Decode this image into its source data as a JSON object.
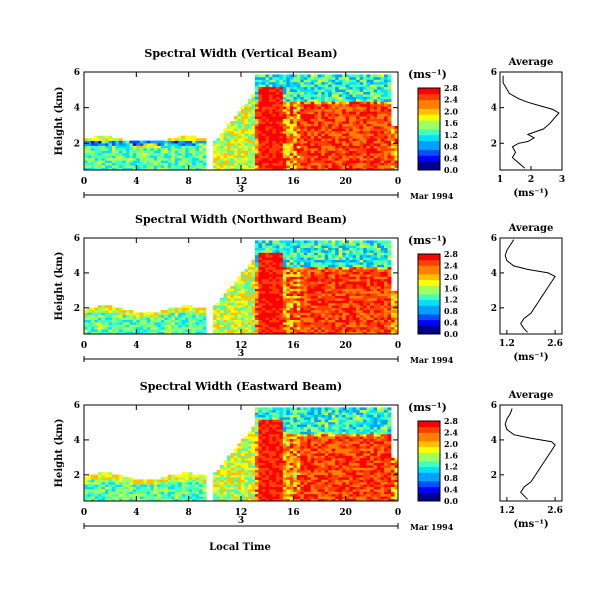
{
  "chart_data": [
    {
      "type": "heatmap",
      "title": "Spectral Width (Vertical Beam)",
      "ylabel": "Height (km)",
      "x_ticks": [
        "0",
        "4",
        "8",
        "12",
        "16",
        "20",
        "0"
      ],
      "y_ticks": [
        "2",
        "4",
        "6"
      ],
      "xlim": [
        0,
        24
      ],
      "ylim": [
        0.5,
        6
      ],
      "day_label": "3",
      "date_label": "Mar 1994",
      "colorbar": {
        "unit": "(ms⁻¹)",
        "labels": [
          "0.0",
          "0.4",
          "0.8",
          "1.2",
          "1.6",
          "2.0",
          "2.4",
          "2.8"
        ]
      },
      "average": {
        "title": "Average",
        "xlabel": "(ms⁻¹)",
        "x_ticks": [
          "1",
          "2",
          "3"
        ],
        "xlim": [
          1,
          3
        ],
        "y_ticks": [
          "2",
          "4",
          "6"
        ],
        "ylim": [
          0.5,
          6
        ],
        "profile": [
          [
            1.8,
            0.6
          ],
          [
            1.6,
            0.9
          ],
          [
            1.4,
            1.2
          ],
          [
            1.5,
            1.5
          ],
          [
            1.4,
            1.8
          ],
          [
            1.6,
            2.0
          ],
          [
            1.9,
            2.1
          ],
          [
            2.1,
            2.3
          ],
          [
            1.9,
            2.5
          ],
          [
            2.4,
            2.8
          ],
          [
            2.6,
            3.1
          ],
          [
            2.7,
            3.3
          ],
          [
            2.8,
            3.5
          ],
          [
            2.9,
            3.7
          ],
          [
            2.7,
            3.9
          ],
          [
            2.3,
            4.1
          ],
          [
            1.9,
            4.3
          ],
          [
            1.6,
            4.5
          ],
          [
            1.3,
            4.8
          ],
          [
            1.2,
            5.1
          ],
          [
            1.1,
            5.4
          ],
          [
            1.1,
            5.8
          ]
        ]
      }
    },
    {
      "type": "heatmap",
      "title": "Spectral Width (Northward Beam)",
      "ylabel": "Height (km)",
      "x_ticks": [
        "0",
        "4",
        "8",
        "12",
        "16",
        "20",
        "0"
      ],
      "y_ticks": [
        "2",
        "4",
        "6"
      ],
      "xlim": [
        0,
        24
      ],
      "ylim": [
        0.5,
        6
      ],
      "day_label": "3",
      "date_label": "Mar 1994",
      "colorbar": {
        "unit": "(ms⁻¹)",
        "labels": [
          "0.0",
          "0.4",
          "0.8",
          "1.2",
          "1.6",
          "2.0",
          "2.4",
          "2.8"
        ]
      },
      "average": {
        "title": "Average",
        "xlabel": "(ms⁻¹)",
        "x_ticks": [
          "1.2",
          "2.6"
        ],
        "xlim": [
          1.0,
          2.8
        ],
        "y_ticks": [
          "2",
          "4",
          "6"
        ],
        "ylim": [
          0.5,
          6
        ],
        "profile": [
          [
            1.8,
            0.6
          ],
          [
            1.7,
            0.8
          ],
          [
            1.6,
            1.1
          ],
          [
            1.7,
            1.4
          ],
          [
            1.9,
            1.7
          ],
          [
            2.0,
            2.0
          ],
          [
            2.1,
            2.3
          ],
          [
            2.2,
            2.6
          ],
          [
            2.3,
            2.9
          ],
          [
            2.4,
            3.2
          ],
          [
            2.5,
            3.5
          ],
          [
            2.6,
            3.8
          ],
          [
            2.4,
            4.0
          ],
          [
            1.8,
            4.2
          ],
          [
            1.4,
            4.4
          ],
          [
            1.2,
            4.7
          ],
          [
            1.15,
            5.0
          ],
          [
            1.2,
            5.3
          ],
          [
            1.3,
            5.6
          ],
          [
            1.4,
            5.9
          ]
        ]
      }
    },
    {
      "type": "heatmap",
      "title": "Spectral Width (Eastward Beam)",
      "ylabel": "Height (km)",
      "x_ticks": [
        "0",
        "4",
        "8",
        "12",
        "16",
        "20",
        "0"
      ],
      "y_ticks": [
        "2",
        "4",
        "6"
      ],
      "xlim": [
        0,
        24
      ],
      "ylim": [
        0.5,
        6
      ],
      "day_label": "3",
      "date_label": "Mar 1994",
      "xlabel": "Local Time",
      "colorbar": {
        "unit": "(ms⁻¹)",
        "labels": [
          "0.0",
          "0.4",
          "0.8",
          "1.2",
          "1.6",
          "2.0",
          "2.4",
          "2.8"
        ]
      },
      "average": {
        "title": "Average",
        "xlabel": "(ms⁻¹)",
        "x_ticks": [
          "1.2",
          "2.6"
        ],
        "xlim": [
          1.0,
          2.8
        ],
        "y_ticks": [
          "2",
          "4",
          "6"
        ],
        "ylim": [
          0.5,
          6
        ],
        "profile": [
          [
            1.8,
            0.6
          ],
          [
            1.7,
            0.8
          ],
          [
            1.6,
            1.0
          ],
          [
            1.7,
            1.3
          ],
          [
            1.9,
            1.6
          ],
          [
            2.0,
            1.9
          ],
          [
            2.1,
            2.2
          ],
          [
            2.2,
            2.5
          ],
          [
            2.3,
            2.8
          ],
          [
            2.4,
            3.1
          ],
          [
            2.5,
            3.4
          ],
          [
            2.6,
            3.7
          ],
          [
            2.5,
            3.9
          ],
          [
            1.9,
            4.1
          ],
          [
            1.4,
            4.3
          ],
          [
            1.2,
            4.6
          ],
          [
            1.15,
            4.9
          ],
          [
            1.2,
            5.2
          ],
          [
            1.3,
            5.5
          ],
          [
            1.35,
            5.8
          ]
        ]
      }
    }
  ]
}
